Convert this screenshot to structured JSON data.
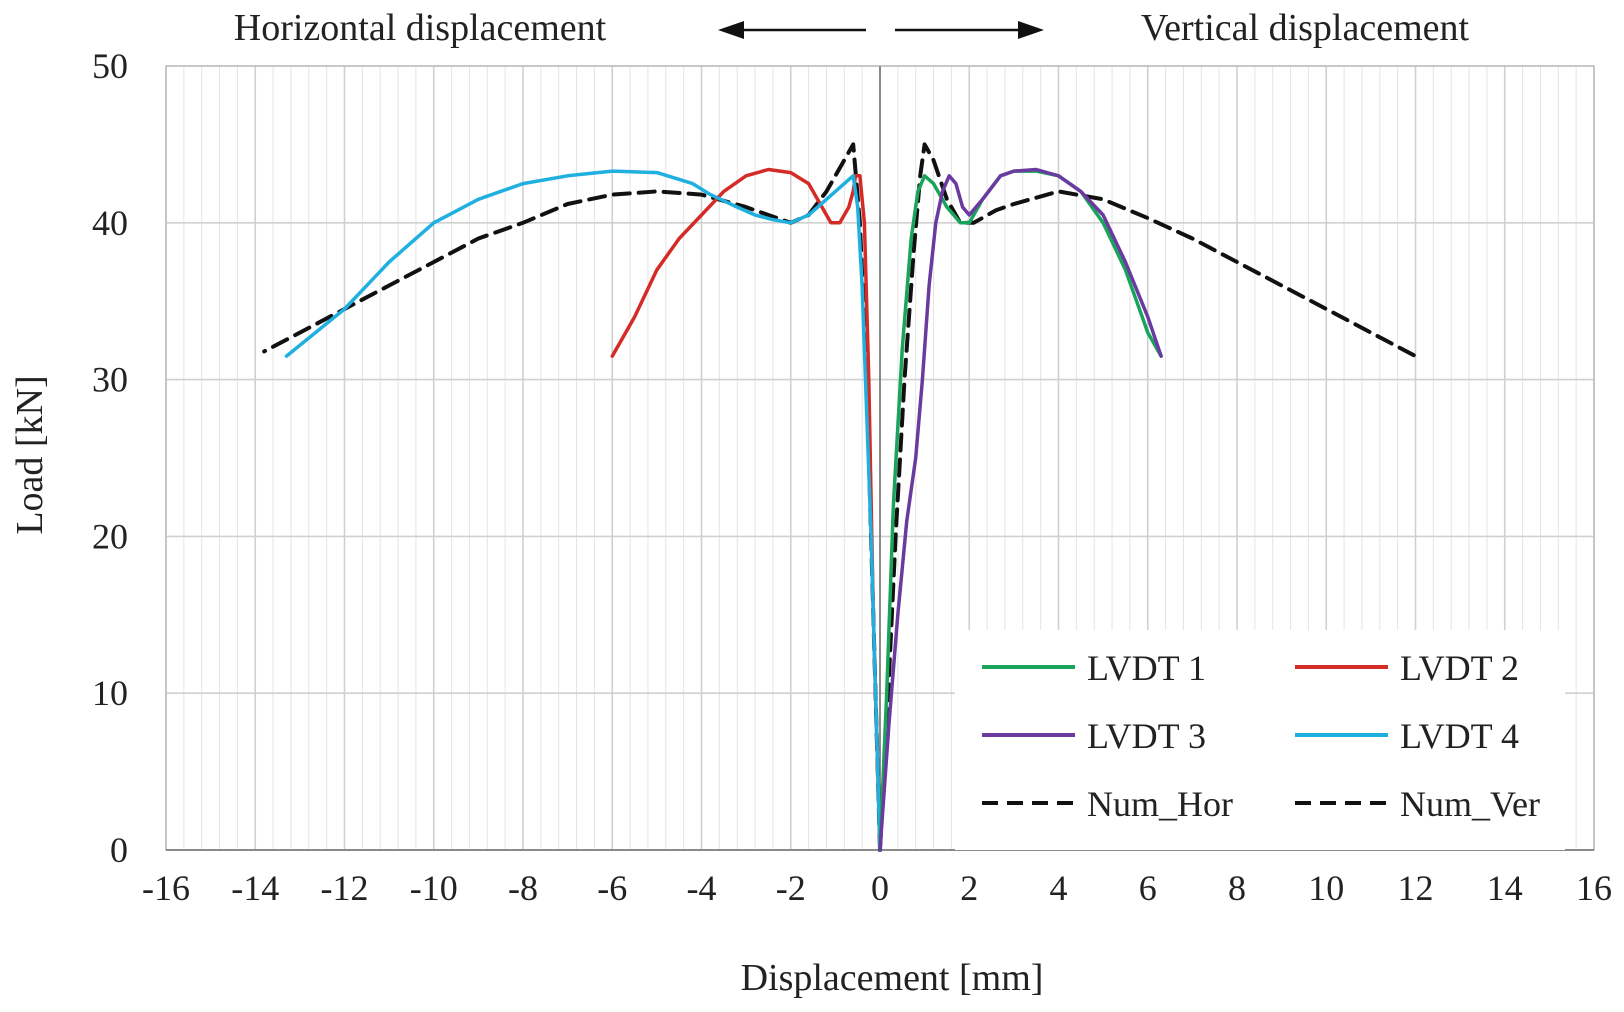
{
  "chart_data": {
    "type": "line",
    "title": "",
    "xlabel": "Displacement [mm]",
    "ylabel": "Load  [kN]",
    "xlim": [
      -16,
      16
    ],
    "ylim": [
      0,
      50
    ],
    "x_ticks": [
      "-16",
      "-14",
      "-12",
      "-10",
      "-8",
      "-6",
      "-4",
      "-2",
      "0",
      "2",
      "4",
      "6",
      "8",
      "10",
      "12",
      "14",
      "16"
    ],
    "y_ticks": [
      "0",
      "10",
      "20",
      "30",
      "40",
      "50"
    ],
    "grid": true,
    "annotations": {
      "left": "Horizontal displacement",
      "right": "Vertical displacement"
    },
    "legend_position": "bottom-right",
    "series": [
      {
        "name": "LVDT 1",
        "color": "#1aa35a",
        "dash": "solid",
        "x": [
          0,
          0.15,
          0.3,
          0.5,
          0.7,
          0.85,
          1.0,
          1.2,
          1.5,
          1.8,
          2.0,
          2.3,
          2.7,
          3.0,
          3.5,
          4.0,
          4.5,
          5.0,
          5.5,
          6.0,
          6.3
        ],
        "y": [
          0,
          10,
          22,
          32,
          39,
          42,
          43,
          42.5,
          41,
          40,
          40,
          41.5,
          43,
          43.3,
          43.3,
          43,
          42,
          40,
          37,
          33,
          31.5
        ]
      },
      {
        "name": "LVDT 2",
        "color": "#d42b27",
        "dash": "solid",
        "x": [
          0,
          -0.15,
          -0.25,
          -0.35,
          -0.45,
          -0.55,
          -0.6,
          -0.7,
          -0.9,
          -1.1,
          -1.3,
          -1.6,
          -2.0,
          -2.5,
          -3.0,
          -3.5,
          -4.0,
          -4.5,
          -5.0,
          -5.5,
          -6.0
        ],
        "y": [
          0,
          15,
          30,
          40,
          43,
          43,
          42,
          41,
          40,
          40,
          41,
          42.5,
          43.2,
          43.4,
          43,
          42,
          40.5,
          39,
          37,
          34,
          31.5
        ]
      },
      {
        "name": "LVDT 3",
        "color": "#6a3aa0",
        "dash": "solid",
        "x": [
          0,
          0.2,
          0.4,
          0.6,
          0.8,
          0.95,
          1.1,
          1.25,
          1.4,
          1.55,
          1.7,
          1.85,
          2.0,
          2.3,
          2.7,
          3.0,
          3.5,
          4.0,
          4.5,
          5.0,
          5.5,
          6.0,
          6.3
        ],
        "y": [
          0,
          8,
          15,
          21,
          25,
          30,
          36,
          40,
          42,
          43,
          42.5,
          41,
          40.5,
          41.5,
          43,
          43.3,
          43.4,
          43,
          42,
          40.5,
          37.5,
          34,
          31.5
        ]
      },
      {
        "name": "LVDT 4",
        "color": "#1fb0e0",
        "dash": "solid",
        "x": [
          0,
          -0.2,
          -0.4,
          -0.5,
          -0.6,
          -0.8,
          -1.2,
          -1.6,
          -2.0,
          -2.4,
          -2.8,
          -3.2,
          -3.8,
          -4.2,
          -5.0,
          -6.0,
          -7.0,
          -8.0,
          -9.0,
          -10.0,
          -11.0,
          -12.0,
          -13.3
        ],
        "y": [
          0,
          20,
          36,
          41,
          43,
          42.5,
          41.5,
          40.5,
          40,
          40.2,
          40.5,
          41,
          41.8,
          42.5,
          43.2,
          43.3,
          43.0,
          42.5,
          41.5,
          40,
          37.5,
          34.5,
          31.5
        ]
      },
      {
        "name": "Num_Hor",
        "color": "#111111",
        "dash": "dashed",
        "x": [
          0,
          -0.15,
          -0.3,
          -0.45,
          -0.6,
          -0.8,
          -1.2,
          -1.6,
          -2.0,
          -2.5,
          -3.0,
          -4.0,
          -5.0,
          -6.0,
          -7.0,
          -8.0,
          -9.0,
          -10.0,
          -11.0,
          -12.0,
          -13.0,
          -13.8
        ],
        "y": [
          0,
          15,
          30,
          40,
          45,
          44,
          42,
          40.5,
          40,
          40.5,
          41,
          41.8,
          42,
          41.8,
          41.2,
          40,
          39,
          37.5,
          36,
          34.5,
          33,
          31.8
        ]
      },
      {
        "name": "Num_Ver",
        "color": "#111111",
        "dash": "dashed",
        "x": [
          0,
          0.15,
          0.35,
          0.55,
          0.75,
          0.9,
          1.0,
          1.2,
          1.5,
          1.8,
          2.1,
          2.6,
          3.0,
          4.0,
          5.0,
          6.0,
          7.0,
          8.0,
          9.0,
          10.0,
          11.0,
          12.0
        ],
        "y": [
          0,
          8,
          20,
          30,
          38,
          43,
          45,
          44,
          41.5,
          40,
          40,
          40.8,
          41.2,
          42,
          41.5,
          40.3,
          39,
          37.5,
          36,
          34.5,
          33,
          31.5
        ]
      }
    ]
  }
}
